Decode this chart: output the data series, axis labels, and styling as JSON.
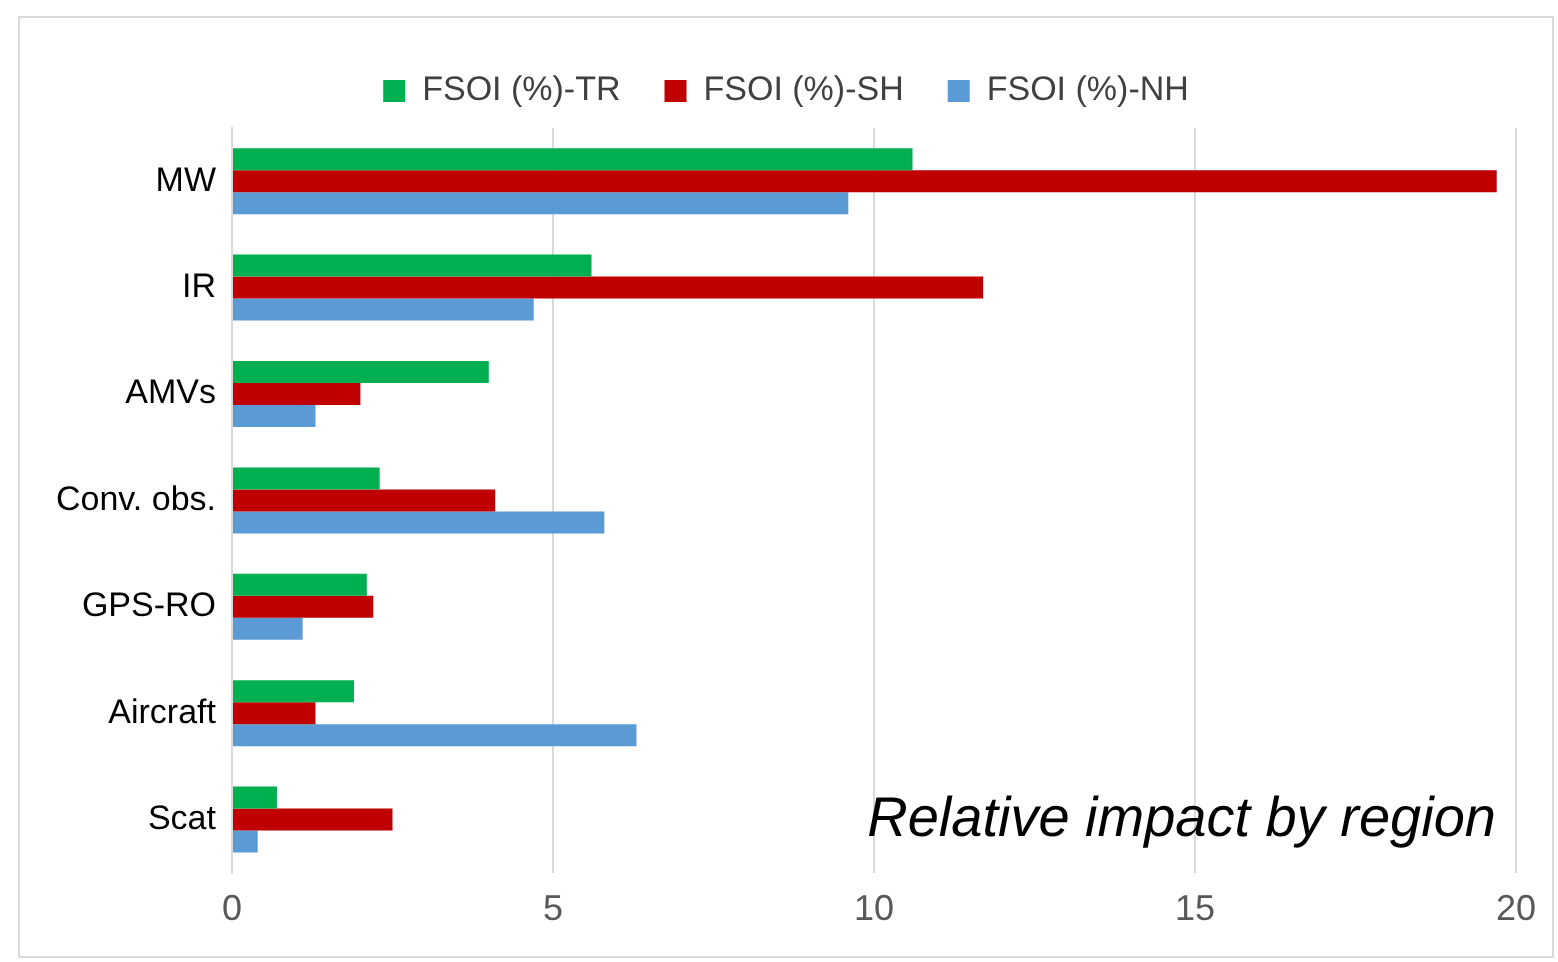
{
  "chart_data": {
    "type": "bar",
    "orientation": "horizontal",
    "categories": [
      "MW",
      "IR",
      "AMVs",
      "Conv. obs.",
      "GPS-RO",
      "Aircraft",
      "Scat"
    ],
    "series": [
      {
        "name": "FSOI (%)-TR",
        "color": "#00b050",
        "values": [
          10.6,
          5.6,
          4.0,
          2.3,
          2.1,
          1.9,
          0.7
        ]
      },
      {
        "name": "FSOI (%)-SH",
        "color": "#c00000",
        "values": [
          19.7,
          11.7,
          2.0,
          4.1,
          2.2,
          1.3,
          2.5
        ]
      },
      {
        "name": "FSOI (%)-NH",
        "color": "#5b9bd5",
        "values": [
          9.6,
          4.7,
          1.3,
          5.8,
          1.1,
          6.3,
          0.4
        ]
      }
    ],
    "xlim": [
      0,
      20
    ],
    "xticks": [
      0,
      5,
      10,
      15,
      20
    ],
    "grid": "x",
    "legend": "top",
    "annotations": [
      "Relative impact by region"
    ]
  }
}
